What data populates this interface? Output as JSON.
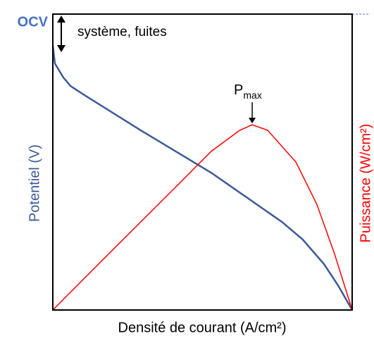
{
  "chart_data": {
    "type": "line",
    "xlabel": "Densité de courant (A/cm²)",
    "ylabel": "Potentiel (V)",
    "y2label": "Puissance (W/cm²)",
    "xlim": [
      0,
      1
    ],
    "ylim": [
      0,
      1
    ],
    "y2lim": [
      0,
      1
    ],
    "ocv": {
      "label": "OCV",
      "value": 1,
      "color": "#4472c4"
    },
    "annotations": [
      {
        "text": "système, fuites"
      },
      {
        "text": "P",
        "subscript": "max",
        "x": 0.666,
        "y": 0.626
      }
    ],
    "series": [
      {
        "name": "Potentiel (V)",
        "color": "#3b5998",
        "x": [
          0,
          0.007,
          0.035,
          0.059,
          0.106,
          0.294,
          0.529,
          0.765,
          0.835,
          0.906,
          0.953,
          1
        ],
        "values": [
          0.893,
          0.833,
          0.786,
          0.757,
          0.726,
          0.607,
          0.464,
          0.298,
          0.238,
          0.155,
          0.083,
          0
        ]
      },
      {
        "name": "Puissance (W/cm²)",
        "color": "#ff0000",
        "axis": "y2",
        "x": [
          0,
          0.176,
          0.412,
          0.529,
          0.624,
          0.666,
          0.718,
          0.812,
          0.882,
          0.941,
          1
        ],
        "values": [
          0,
          0.179,
          0.417,
          0.536,
          0.607,
          0.626,
          0.607,
          0.5,
          0.357,
          0.19,
          0
        ]
      }
    ]
  }
}
